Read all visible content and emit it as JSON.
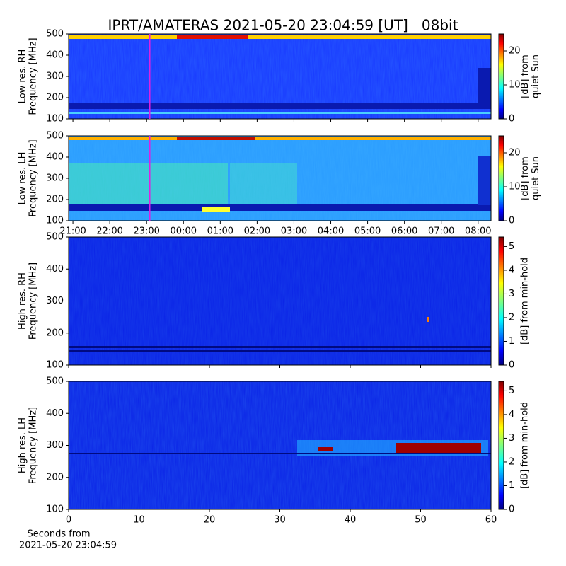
{
  "title": "IPRT/AMATERAS 2021-05-20 23:04:59 [UT]   08bit",
  "chart_data": [
    {
      "type": "spectrogram",
      "ylabel": [
        "Low res. RH",
        "Frequency [MHz]"
      ],
      "ylim": [
        100,
        500
      ],
      "yticks": [
        100,
        200,
        300,
        400,
        500
      ],
      "xlim": [
        "20:53",
        "08:21"
      ],
      "sharex": 1,
      "cursor": "23:04:59",
      "cursor_color": "#e020e0",
      "clabel": [
        "[dB] from",
        "quiet Sun"
      ],
      "clim": [
        0,
        25
      ],
      "cticks": [
        0,
        10,
        20
      ]
    },
    {
      "type": "spectrogram",
      "ylabel": [
        "Low res. LH",
        "Frequency [MHz]"
      ],
      "ylim": [
        100,
        500
      ],
      "yticks": [
        100,
        200,
        300,
        400,
        500
      ],
      "xlim": [
        "20:53",
        "08:21"
      ],
      "xticks": [
        "21:00",
        "22:00",
        "23:00",
        "00:00",
        "01:00",
        "02:00",
        "03:00",
        "04:00",
        "05:00",
        "06:00",
        "07:00",
        "08:00"
      ],
      "cursor": "23:04:59",
      "cursor_color": "#e020e0",
      "clabel": [
        "[dB] from",
        "quiet Sun"
      ],
      "clim": [
        0,
        25
      ],
      "cticks": [
        0,
        10,
        20
      ]
    },
    {
      "type": "spectrogram",
      "ylabel": [
        "High res. RH",
        "Frequency [MHz]"
      ],
      "ylim": [
        100,
        500
      ],
      "yticks": [
        100,
        200,
        300,
        400,
        500
      ],
      "xlim": [
        0,
        60
      ],
      "sharex": 3,
      "clabel": [
        "[dB] from min-hold"
      ],
      "clim": [
        0,
        5.4
      ],
      "cticks": [
        0,
        1,
        2,
        3,
        4,
        5
      ]
    },
    {
      "type": "spectrogram",
      "ylabel": [
        "High res. LH",
        "Frequency [MHz]"
      ],
      "ylim": [
        100,
        500
      ],
      "yticks": [
        100,
        200,
        300,
        400,
        500
      ],
      "xlim": [
        0,
        60
      ],
      "xticks": [
        0,
        10,
        20,
        30,
        40,
        50,
        60
      ],
      "xlabel": [
        "Seconds from",
        "2021-05-20 23:04:59"
      ],
      "clabel": [
        "[dB] from min-hold"
      ],
      "clim": [
        0,
        5.4
      ],
      "cticks": [
        0,
        1,
        2,
        3,
        4,
        5
      ]
    }
  ]
}
